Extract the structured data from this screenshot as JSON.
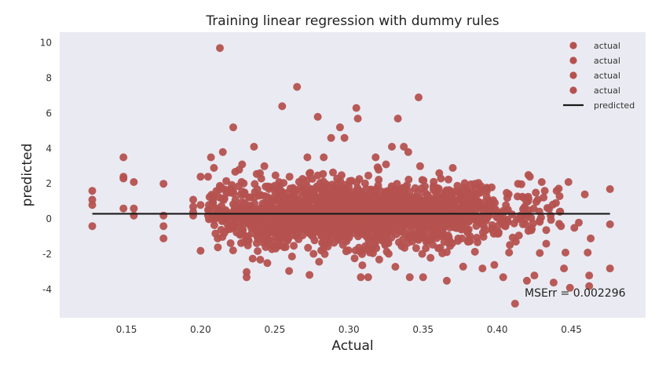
{
  "chart_data": {
    "type": "scatter",
    "title": "Training linear regression with dummy rules",
    "xlabel": "Actual",
    "ylabel": "predicted",
    "xlim": [
      0.105,
      0.5
    ],
    "ylim": [
      -5.6,
      10.6
    ],
    "x_ticks": [
      0.15,
      0.2,
      0.25,
      0.3,
      0.35,
      0.4,
      0.45
    ],
    "x_tick_labels": [
      "0.15",
      "0.20",
      "0.25",
      "0.30",
      "0.35",
      "0.40",
      "0.45"
    ],
    "y_ticks": [
      -4,
      -2,
      0,
      2,
      4,
      6,
      8,
      10
    ],
    "y_tick_labels": [
      "-4",
      "-2",
      "0",
      "2",
      "4",
      "6",
      "8",
      "10"
    ],
    "grid": false,
    "background": "#eaeaf2",
    "legend_position": "top-right",
    "legend": [
      {
        "label": "actual",
        "kind": "marker",
        "color": "#b5524f"
      },
      {
        "label": "actual",
        "kind": "marker",
        "color": "#b5524f"
      },
      {
        "label": "actual",
        "kind": "marker",
        "color": "#b5524f"
      },
      {
        "label": "actual",
        "kind": "marker",
        "color": "#b5524f"
      },
      {
        "label": "predicted",
        "kind": "line",
        "color": "#1a1a1a"
      }
    ],
    "annotation": "MSErr = 0.002296",
    "marker_color": "#b5524f",
    "line_color": "#1a1a1a",
    "series": [
      {
        "label": "actual",
        "points": [
          [
            0.127,
            1.6
          ],
          [
            0.127,
            1.1
          ],
          [
            0.127,
            0.8
          ],
          [
            0.127,
            -0.4
          ],
          [
            0.148,
            3.5
          ],
          [
            0.148,
            2.4
          ],
          [
            0.148,
            2.3
          ],
          [
            0.148,
            0.6
          ],
          [
            0.155,
            2.1
          ],
          [
            0.155,
            0.6
          ],
          [
            0.155,
            0.2
          ],
          [
            0.175,
            2.0
          ],
          [
            0.175,
            0.2
          ],
          [
            0.175,
            -0.4
          ],
          [
            0.175,
            -1.1
          ],
          [
            0.195,
            1.1
          ],
          [
            0.195,
            0.7
          ],
          [
            0.195,
            0.4
          ],
          [
            0.195,
            0.2
          ],
          [
            0.2,
            -1.8
          ],
          [
            0.2,
            2.4
          ],
          [
            0.2,
            0.8
          ],
          [
            0.205,
            2.4
          ],
          [
            0.205,
            0.2
          ],
          [
            0.207,
            3.5
          ],
          [
            0.209,
            2.9
          ],
          [
            0.213,
            9.7
          ],
          [
            0.215,
            3.8
          ],
          [
            0.214,
            1.8
          ],
          [
            0.216,
            -0.8
          ],
          [
            0.222,
            5.2
          ],
          [
            0.226,
            2.8
          ],
          [
            0.228,
            3.1
          ],
          [
            0.231,
            -3.0
          ],
          [
            0.231,
            -3.3
          ],
          [
            0.236,
            4.1
          ],
          [
            0.24,
            2.6
          ],
          [
            0.243,
            3.0
          ],
          [
            0.245,
            -2.5
          ],
          [
            0.255,
            6.4
          ],
          [
            0.26,
            2.4
          ],
          [
            0.265,
            7.5
          ],
          [
            0.272,
            3.5
          ],
          [
            0.279,
            5.8
          ],
          [
            0.283,
            3.5
          ],
          [
            0.288,
            4.6
          ],
          [
            0.294,
            5.2
          ],
          [
            0.297,
            4.6
          ],
          [
            0.305,
            6.3
          ],
          [
            0.306,
            5.7
          ],
          [
            0.308,
            -3.3
          ],
          [
            0.313,
            -3.3
          ],
          [
            0.318,
            3.5
          ],
          [
            0.32,
            2.8
          ],
          [
            0.325,
            3.1
          ],
          [
            0.329,
            4.1
          ],
          [
            0.333,
            5.7
          ],
          [
            0.337,
            4.1
          ],
          [
            0.34,
            3.8
          ],
          [
            0.341,
            -3.3
          ],
          [
            0.347,
            6.9
          ],
          [
            0.348,
            3.0
          ],
          [
            0.35,
            -3.3
          ],
          [
            0.355,
            -2.2
          ],
          [
            0.362,
            2.3
          ],
          [
            0.366,
            -3.5
          ],
          [
            0.37,
            2.9
          ],
          [
            0.377,
            -2.7
          ],
          [
            0.385,
            2.0
          ],
          [
            0.39,
            -2.8
          ],
          [
            0.398,
            -2.6
          ],
          [
            0.404,
            -3.3
          ],
          [
            0.408,
            -1.9
          ],
          [
            0.412,
            -4.8
          ],
          [
            0.414,
            2.0
          ],
          [
            0.418,
            1.2
          ],
          [
            0.42,
            -3.5
          ],
          [
            0.421,
            2.5
          ],
          [
            0.422,
            2.4
          ],
          [
            0.425,
            -3.2
          ],
          [
            0.426,
            1.5
          ],
          [
            0.43,
            2.1
          ],
          [
            0.432,
            1.6
          ],
          [
            0.433,
            -1.4
          ],
          [
            0.436,
            0.2
          ],
          [
            0.438,
            -3.6
          ],
          [
            0.44,
            1.6
          ],
          [
            0.442,
            1.3
          ],
          [
            0.443,
            -0.4
          ],
          [
            0.445,
            -2.8
          ],
          [
            0.446,
            -1.9
          ],
          [
            0.448,
            2.1
          ],
          [
            0.449,
            -3.9
          ],
          [
            0.452,
            -0.5
          ],
          [
            0.455,
            -0.2
          ],
          [
            0.459,
            1.4
          ],
          [
            0.461,
            -1.9
          ],
          [
            0.462,
            -3.2
          ],
          [
            0.462,
            -3.8
          ],
          [
            0.463,
            -1.1
          ],
          [
            0.476,
            1.7
          ],
          [
            0.476,
            -0.3
          ],
          [
            0.476,
            -2.8
          ]
        ],
        "dense_cluster": {
          "x_center": 0.305,
          "x_spread": 0.055,
          "y_center": 0.25,
          "y_spread": 0.85,
          "x_range": [
            0.205,
            0.445
          ],
          "count": 2200
        }
      }
    ],
    "fit_line": {
      "x": [
        0.127,
        0.476
      ],
      "y": [
        0.3,
        0.3
      ]
    }
  }
}
